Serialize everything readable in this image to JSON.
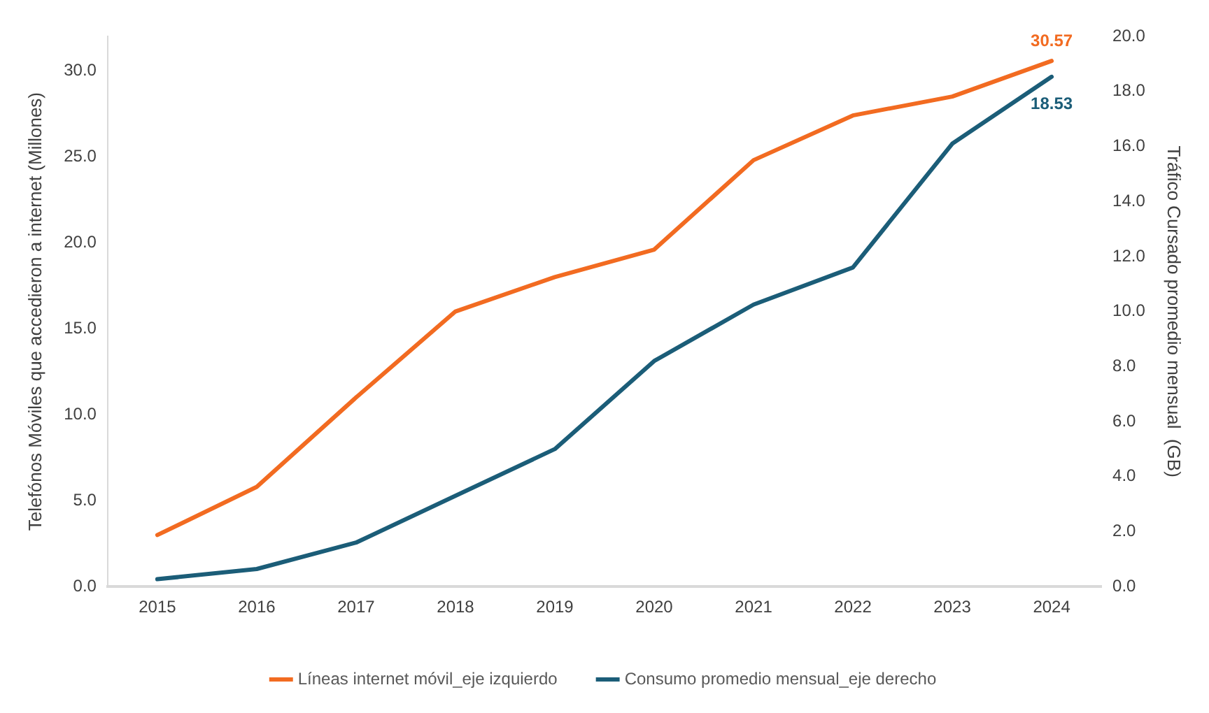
{
  "chart_data": {
    "type": "line",
    "categories": [
      "2015",
      "2016",
      "2017",
      "2018",
      "2019",
      "2020",
      "2021",
      "2022",
      "2023",
      "2024"
    ],
    "series": [
      {
        "name": "Líneas internet móvil_eje izquierdo",
        "color": "#f26b21",
        "values": [
          3.0,
          5.8,
          11.0,
          16.0,
          18.0,
          19.6,
          24.8,
          27.4,
          28.5,
          30.57
        ],
        "value_labels": [
          null,
          null,
          null,
          null,
          null,
          null,
          null,
          null,
          null,
          "30.57"
        ]
      },
      {
        "name": "Consumo promedio mensual_eje derecho",
        "color": "#1b5d78",
        "axis": "y2",
        "values": [
          0.27,
          0.64,
          1.6,
          3.3,
          5.0,
          8.2,
          10.25,
          11.6,
          16.1,
          18.53
        ],
        "value_labels": [
          null,
          null,
          null,
          null,
          null,
          null,
          null,
          null,
          null,
          "18.53"
        ]
      }
    ],
    "ylabel": "Telefónos Móviles que accedieron a internet (Millones)",
    "y2label": "Tráfico Cursado promedio mensual  (GB)",
    "ylim": [
      0,
      32
    ],
    "yticks": [
      {
        "value": 0,
        "label": "0.0"
      },
      {
        "value": 5,
        "label": "5.0"
      },
      {
        "value": 10,
        "label": "10.0"
      },
      {
        "value": 15,
        "label": "15.0"
      },
      {
        "value": 20,
        "label": "20.0"
      },
      {
        "value": 25,
        "label": "25.0"
      },
      {
        "value": 30,
        "label": "30.0"
      }
    ],
    "y2lim": [
      0,
      20
    ],
    "y2ticks": [
      {
        "value": 0,
        "label": "0.0"
      },
      {
        "value": 2,
        "label": "2.0"
      },
      {
        "value": 4,
        "label": "4.0"
      },
      {
        "value": 6,
        "label": "6.0"
      },
      {
        "value": 8,
        "label": "8.0"
      },
      {
        "value": 10,
        "label": "10.0"
      },
      {
        "value": 12,
        "label": "12.0"
      },
      {
        "value": 14,
        "label": "14.0"
      },
      {
        "value": 16,
        "label": "16.0"
      },
      {
        "value": 18,
        "label": "18.0"
      },
      {
        "value": 20,
        "label": "20.0"
      }
    ],
    "grid": false,
    "legend": "bottom",
    "marker": "none",
    "line_style": "solid"
  }
}
